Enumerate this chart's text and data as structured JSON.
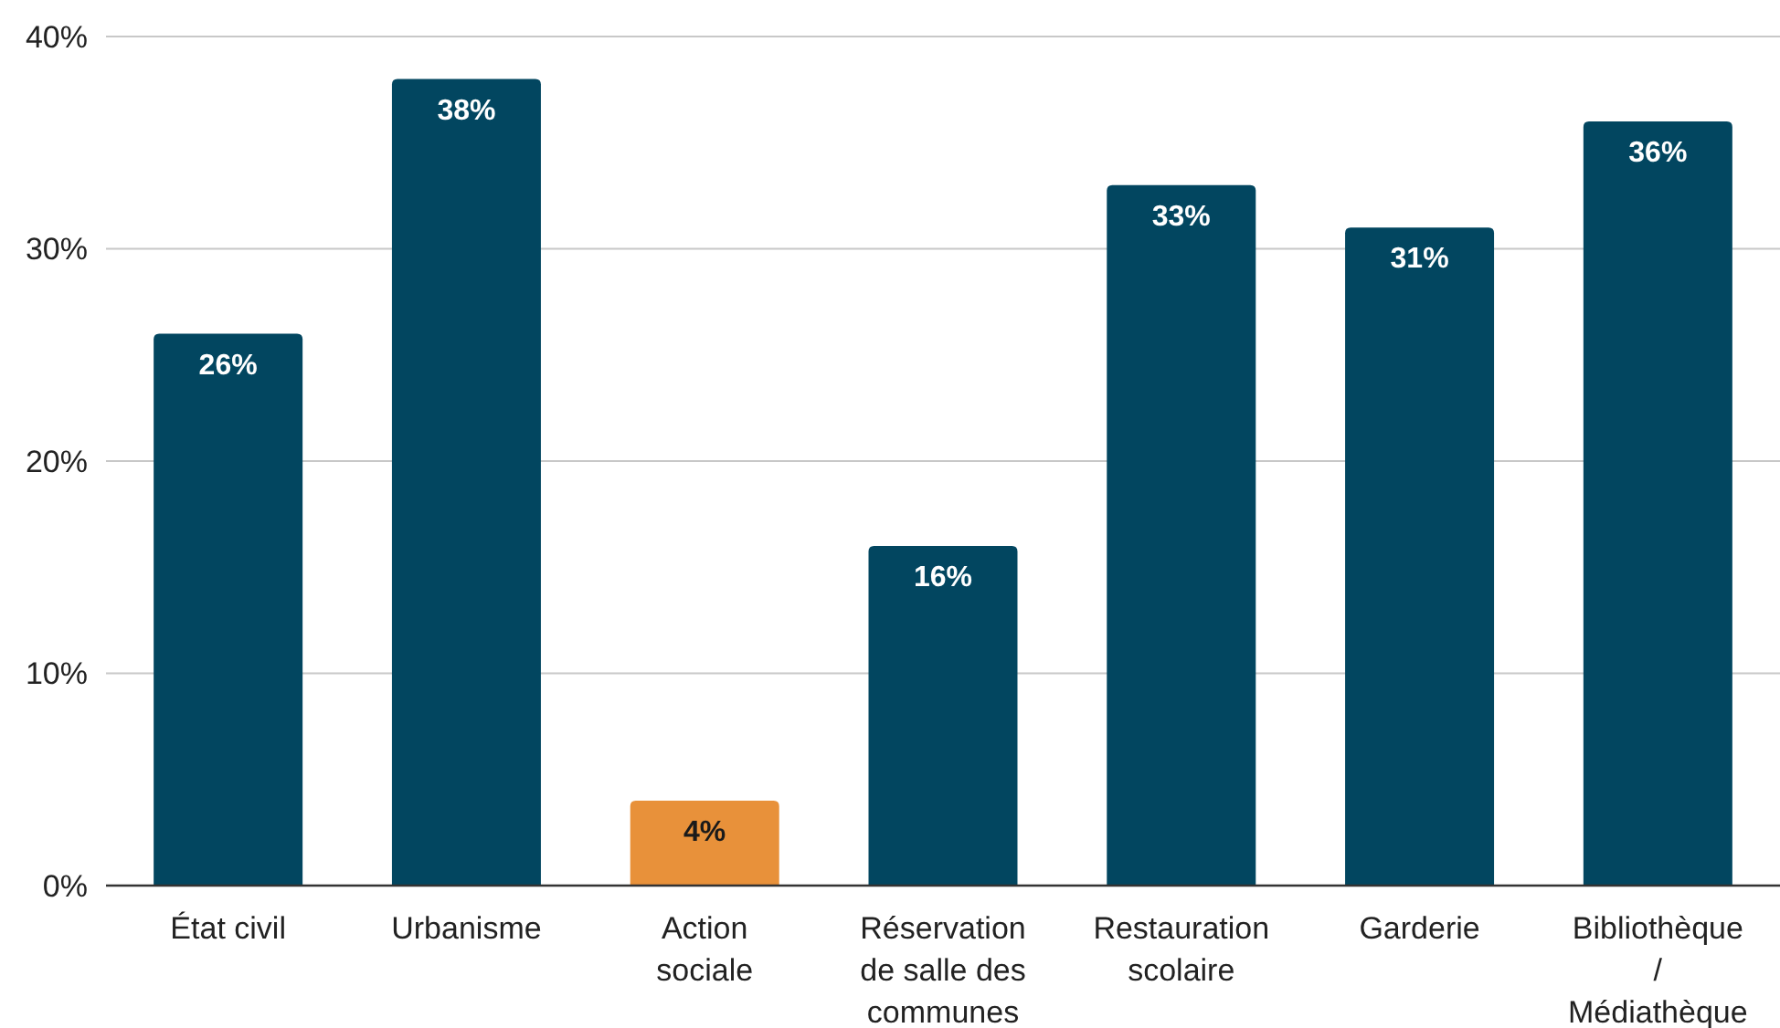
{
  "chart_data": {
    "type": "bar",
    "categories": [
      "État civil",
      "Urbanisme",
      "Action sociale",
      "Réservation de salle des communes",
      "Restauration scolaire",
      "Garderie",
      "Bibliothèque / Médiathèque"
    ],
    "values": [
      26,
      38,
      4,
      16,
      33,
      31,
      36
    ],
    "colors": [
      "#024660",
      "#024660",
      "#e8913a",
      "#024660",
      "#024660",
      "#024660",
      "#024660"
    ],
    "value_labels": [
      "26%",
      "38%",
      "4%",
      "16%",
      "33%",
      "31%",
      "36%"
    ],
    "ylim": [
      0,
      40
    ],
    "yticks": [
      {
        "value": 0,
        "label": "0%"
      },
      {
        "value": 10,
        "label": "10%"
      },
      {
        "value": 20,
        "label": "20%"
      },
      {
        "value": 30,
        "label": "30%"
      },
      {
        "value": 40,
        "label": "40%"
      }
    ],
    "grid": "y"
  }
}
